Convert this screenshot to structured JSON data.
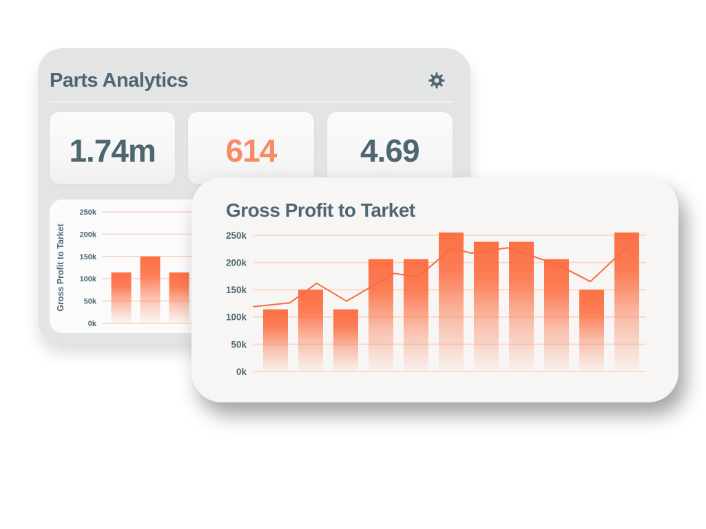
{
  "page": {
    "background": "#ffffff"
  },
  "colors": {
    "slate": "#4e6671",
    "coral": "#f88a66",
    "bar_orange": "#fc7045",
    "line_orange": "#f96a42",
    "gridline_peach": "#fbd3c1",
    "back_card_bg": "#e3e4e4",
    "front_card_bg": "#f7f6f4",
    "panel_bg": "#fbfbfb"
  },
  "back_card": {
    "title": "Parts Analytics",
    "gear_icon": "gear",
    "stats": [
      {
        "value": "1.74m",
        "color": "slate"
      },
      {
        "value": "614",
        "color": "coral"
      },
      {
        "value": "4.69",
        "color": "slate"
      }
    ]
  },
  "front_card": {
    "title": "Gross Profit to Tarket"
  },
  "chart_data": [
    {
      "id": "back-mini-chart",
      "type": "bar",
      "title": "",
      "ylabel": "Gross Profit to Tarket",
      "ylim": [
        0,
        250000
      ],
      "ytick_labels": [
        "250k",
        "200k",
        "150k",
        "100k",
        "50k",
        "0k"
      ],
      "bar_values": [
        114000,
        150000,
        114000,
        206000,
        206000,
        255000,
        238000,
        238000,
        206000,
        150000,
        255000
      ],
      "grid": true,
      "legend": false,
      "note": "same series as front chart; only first ~3 bars visible, rest hidden behind front card"
    },
    {
      "id": "front-chart",
      "type": "bar+line",
      "title": "Gross Profit to Tarket",
      "ylabel": "",
      "ylim": [
        0,
        250000
      ],
      "ytick_labels": [
        "250k",
        "200k",
        "150k",
        "100k",
        "50k",
        "0k"
      ],
      "bar_values": [
        114000,
        150000,
        114000,
        206000,
        206000,
        255000,
        238000,
        238000,
        206000,
        150000,
        255000
      ],
      "line_points": [
        [
          0.0,
          119000
        ],
        [
          0.093,
          126000
        ],
        [
          0.161,
          162000
        ],
        [
          0.237,
          129000
        ],
        [
          0.358,
          180000
        ],
        [
          0.419,
          173000
        ],
        [
          0.504,
          226000
        ],
        [
          0.556,
          217000
        ],
        [
          0.647,
          227000
        ],
        [
          0.775,
          196000
        ],
        [
          0.858,
          165000
        ],
        [
          0.954,
          230000
        ]
      ],
      "grid": true,
      "legend": false
    }
  ]
}
